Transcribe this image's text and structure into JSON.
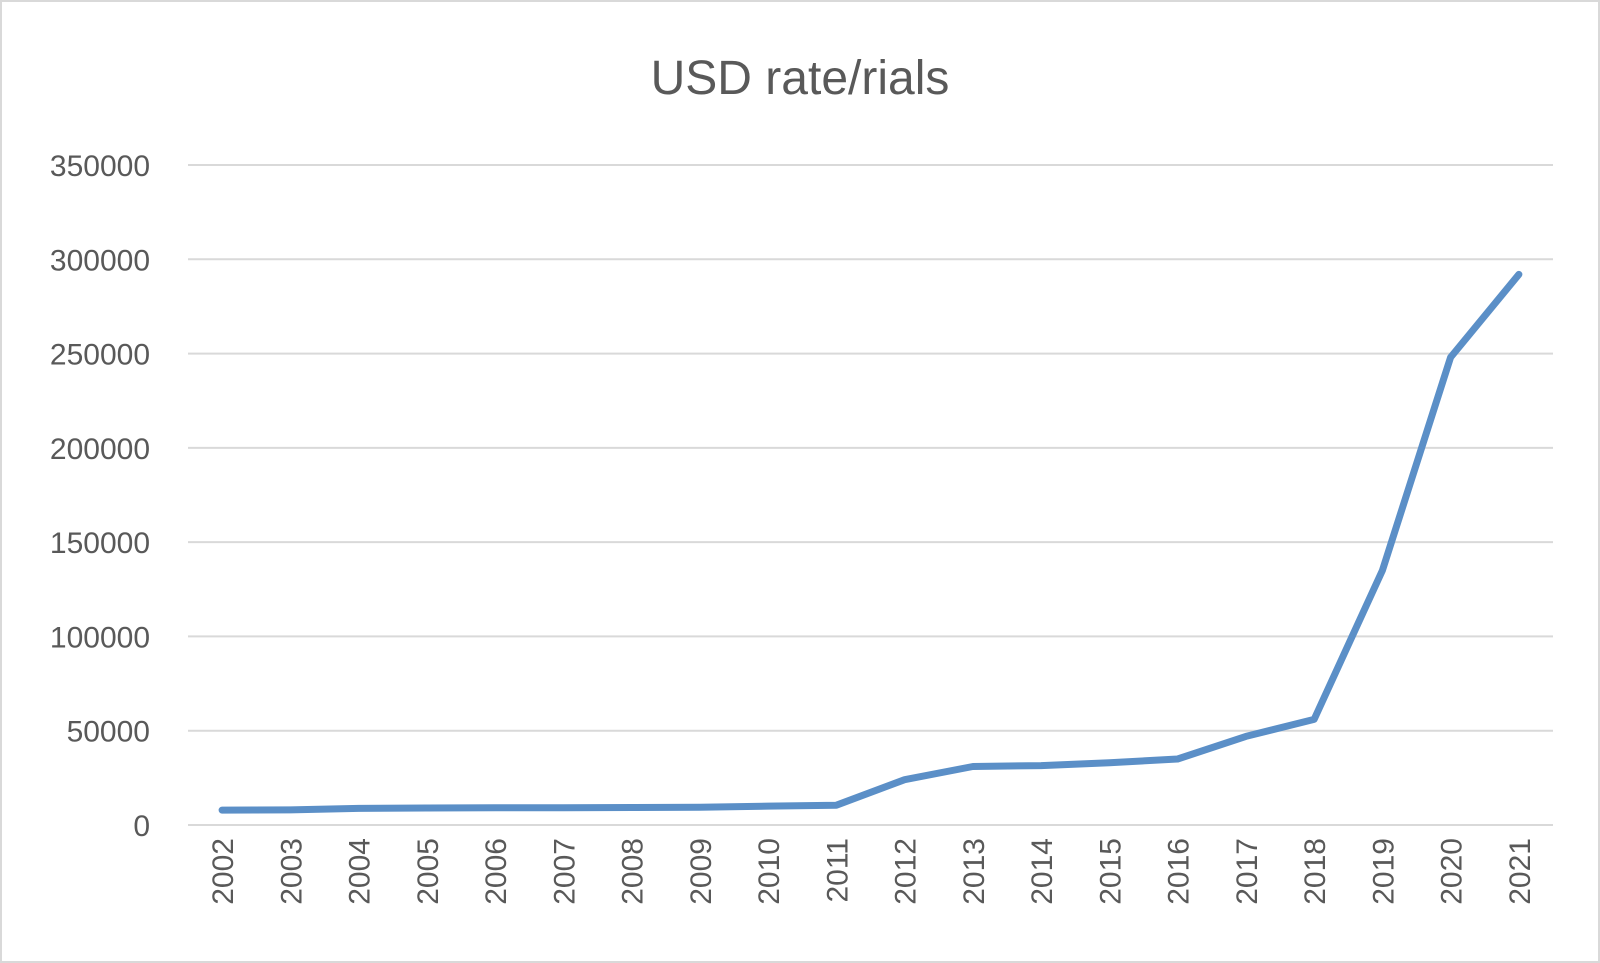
{
  "chart_data": {
    "type": "line",
    "title": "USD rate/rials",
    "xlabel": "",
    "ylabel": "",
    "categories": [
      "2002",
      "2003",
      "2004",
      "2005",
      "2006",
      "2007",
      "2008",
      "2009",
      "2010",
      "2011",
      "2012",
      "2013",
      "2014",
      "2015",
      "2016",
      "2017",
      "2018",
      "2019",
      "2020",
      "2021"
    ],
    "series": [
      {
        "values": [
          7900,
          8000,
          8800,
          9000,
          9100,
          9200,
          9300,
          9400,
          10000,
          10500,
          24000,
          31000,
          31500,
          33000,
          35000,
          47000,
          56000,
          135000,
          248000,
          292000
        ],
        "color": "#5b8fc7"
      }
    ],
    "ylim": [
      0,
      350000
    ],
    "yticks": [
      0,
      50000,
      100000,
      150000,
      200000,
      250000,
      300000,
      350000
    ],
    "grid": true,
    "legend": "none"
  }
}
